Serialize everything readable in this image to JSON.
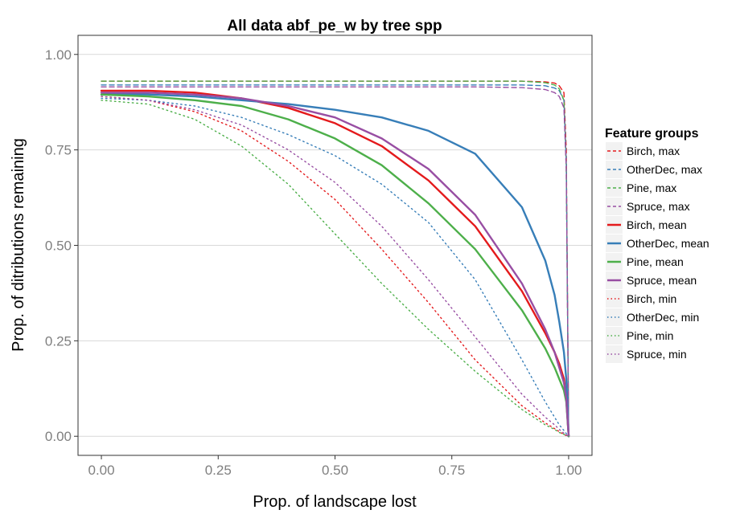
{
  "chart_data": {
    "type": "line",
    "title": "All data abf_pe_w by tree spp",
    "xlabel": "Prop. of landscape lost",
    "ylabel": "Prop. of ditributions remaining",
    "xlim": [
      -0.05,
      1.05
    ],
    "ylim": [
      -0.05,
      1.05
    ],
    "x_ticks": [
      0,
      0.25,
      0.5,
      0.75,
      1
    ],
    "x_tick_labels": [
      "0.00",
      "0.25",
      "0.50",
      "0.75",
      "1.00"
    ],
    "y_ticks": [
      0,
      0.25,
      0.5,
      0.75,
      1
    ],
    "y_tick_labels": [
      "0.00",
      "0.25",
      "0.50",
      "0.75",
      "1.00"
    ],
    "grid": true,
    "legend": {
      "title": "Feature groups",
      "position": "right",
      "entries": [
        "Birch, max",
        "OtherDec, max",
        "Pine, max",
        "Spruce, max",
        "Birch, mean",
        "OtherDec, mean",
        "Pine, mean",
        "Spruce, mean",
        "Birch, min",
        "OtherDec, min",
        "Pine, min",
        "Spruce, min"
      ]
    },
    "colors": {
      "Birch": "#e41a1c",
      "OtherDec": "#377eb8",
      "Pine": "#4daf4a",
      "Spruce": "#984ea3"
    },
    "line_styles": {
      "max": "dashed",
      "mean": "solid",
      "min": "dotted"
    },
    "x": [
      0,
      0.1,
      0.2,
      0.3,
      0.4,
      0.5,
      0.6,
      0.7,
      0.8,
      0.9,
      0.95,
      0.97,
      0.98,
      0.99,
      0.995,
      1.0
    ],
    "series": [
      {
        "name": "Birch, max",
        "species": "Birch",
        "stat": "max",
        "values": [
          0.93,
          0.93,
          0.93,
          0.93,
          0.93,
          0.93,
          0.93,
          0.93,
          0.93,
          0.93,
          0.928,
          0.925,
          0.918,
          0.9,
          0.75,
          0.0
        ]
      },
      {
        "name": "OtherDec, max",
        "species": "OtherDec",
        "stat": "max",
        "values": [
          0.92,
          0.92,
          0.92,
          0.92,
          0.92,
          0.92,
          0.92,
          0.92,
          0.92,
          0.92,
          0.918,
          0.912,
          0.905,
          0.88,
          0.72,
          0.0
        ]
      },
      {
        "name": "Pine, max",
        "species": "Pine",
        "stat": "max",
        "values": [
          0.93,
          0.93,
          0.93,
          0.93,
          0.93,
          0.93,
          0.93,
          0.93,
          0.93,
          0.93,
          0.926,
          0.92,
          0.91,
          0.88,
          0.7,
          0.0
        ]
      },
      {
        "name": "Spruce, max",
        "species": "Spruce",
        "stat": "max",
        "values": [
          0.915,
          0.915,
          0.915,
          0.915,
          0.915,
          0.915,
          0.915,
          0.915,
          0.915,
          0.913,
          0.908,
          0.9,
          0.89,
          0.86,
          0.7,
          0.0
        ]
      },
      {
        "name": "Birch, mean",
        "species": "Birch",
        "stat": "mean",
        "values": [
          0.905,
          0.905,
          0.9,
          0.885,
          0.86,
          0.82,
          0.76,
          0.67,
          0.55,
          0.38,
          0.27,
          0.22,
          0.19,
          0.15,
          0.1,
          0.0
        ]
      },
      {
        "name": "OtherDec, mean",
        "species": "OtherDec",
        "stat": "mean",
        "values": [
          0.895,
          0.895,
          0.89,
          0.88,
          0.87,
          0.855,
          0.835,
          0.8,
          0.74,
          0.6,
          0.46,
          0.37,
          0.3,
          0.22,
          0.15,
          0.0
        ]
      },
      {
        "name": "Pine, mean",
        "species": "Pine",
        "stat": "mean",
        "values": [
          0.895,
          0.89,
          0.88,
          0.865,
          0.83,
          0.78,
          0.71,
          0.61,
          0.49,
          0.33,
          0.23,
          0.18,
          0.15,
          0.12,
          0.09,
          0.0
        ]
      },
      {
        "name": "Spruce, mean",
        "species": "Spruce",
        "stat": "mean",
        "values": [
          0.9,
          0.9,
          0.895,
          0.885,
          0.865,
          0.835,
          0.78,
          0.7,
          0.58,
          0.4,
          0.28,
          0.22,
          0.18,
          0.14,
          0.1,
          0.0
        ]
      },
      {
        "name": "Birch, min",
        "species": "Birch",
        "stat": "min",
        "values": [
          0.89,
          0.88,
          0.85,
          0.8,
          0.72,
          0.62,
          0.49,
          0.35,
          0.2,
          0.08,
          0.035,
          0.02,
          0.012,
          0.005,
          0.002,
          0.0
        ]
      },
      {
        "name": "OtherDec, min",
        "species": "OtherDec",
        "stat": "min",
        "values": [
          0.885,
          0.88,
          0.865,
          0.835,
          0.79,
          0.735,
          0.66,
          0.56,
          0.41,
          0.2,
          0.09,
          0.05,
          0.03,
          0.015,
          0.007,
          0.0
        ]
      },
      {
        "name": "Pine, min",
        "species": "Pine",
        "stat": "min",
        "values": [
          0.88,
          0.87,
          0.83,
          0.76,
          0.66,
          0.53,
          0.4,
          0.28,
          0.17,
          0.07,
          0.03,
          0.018,
          0.01,
          0.005,
          0.002,
          0.0
        ]
      },
      {
        "name": "Spruce, min",
        "species": "Spruce",
        "stat": "min",
        "values": [
          0.89,
          0.88,
          0.855,
          0.815,
          0.75,
          0.665,
          0.55,
          0.41,
          0.26,
          0.11,
          0.05,
          0.03,
          0.018,
          0.008,
          0.003,
          0.0
        ]
      }
    ]
  }
}
